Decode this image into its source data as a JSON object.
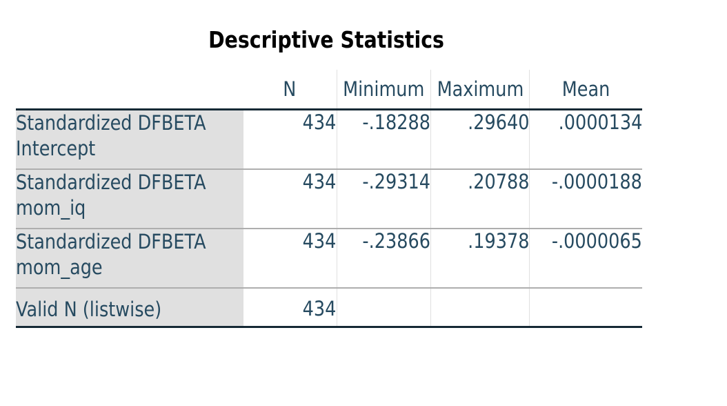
{
  "title": "Descriptive Statistics",
  "columns": [
    "N",
    "Minimum",
    "Maximum",
    "Mean"
  ],
  "rows": [
    {
      "label_line1": "Standardized DFBETA",
      "label_line2": "Intercept",
      "n": "434",
      "minimum": "-.18288",
      "maximum": ".29640",
      "mean": ".0000134"
    },
    {
      "label_line1": "Standardized DFBETA",
      "label_line2": "mom_iq",
      "n": "434",
      "minimum": "-.29314",
      "maximum": ".20788",
      "mean": "-.0000188"
    },
    {
      "label_line1": "Standardized DFBETA",
      "label_line2": "mom_age",
      "n": "434",
      "minimum": "-.23866",
      "maximum": ".19378",
      "mean": "-.0000065"
    }
  ],
  "valid_row": {
    "label": "Valid N (listwise)",
    "n": "434"
  },
  "colors": {
    "label_text": "#264a60",
    "row_label_bg": "#e0e0e0",
    "rule_dark": "#152935",
    "rule_light": "#aeaeae"
  }
}
